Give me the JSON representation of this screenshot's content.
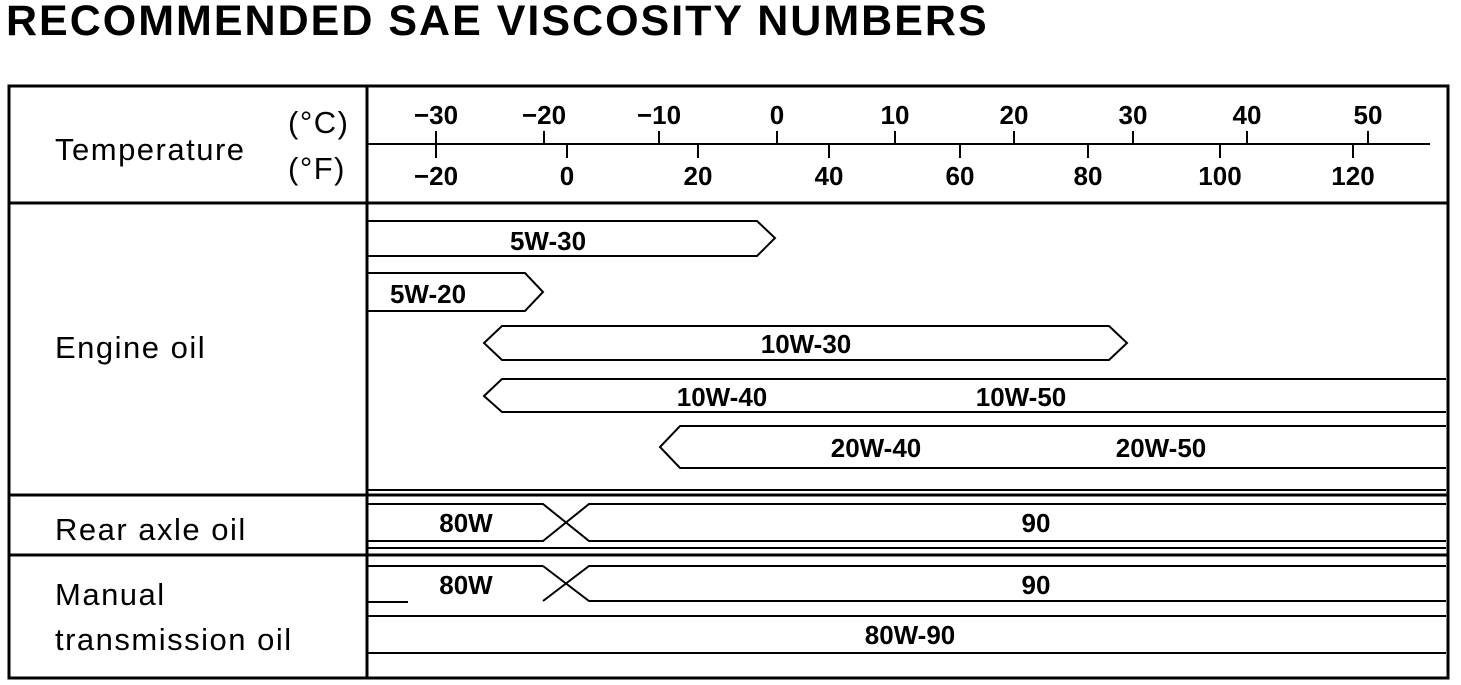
{
  "title": "RECOMMENDED SAE VISCOSITY NUMBERS",
  "labels": {
    "temperature": "Temperature",
    "celsius": "(°C)",
    "fahrenheit": "(°F)",
    "engine_oil": "Engine  oil",
    "rear_axle_oil": "Rear  axle  oil",
    "manual_line1": "Manual",
    "manual_line2": "transmission  oil"
  },
  "chart_data": {
    "type": "range-bar",
    "celsius_ticks": [
      "−30",
      "−20",
      "−10",
      "0",
      "10",
      "20",
      "30",
      "40",
      "50"
    ],
    "fahrenheit_ticks": [
      "−20",
      "0",
      "20",
      "40",
      "60",
      "80",
      "100",
      "120"
    ],
    "groups": [
      {
        "name": "Engine  oil",
        "bands": [
          {
            "label": "5W-30",
            "from_c": null,
            "to_c": 0
          },
          {
            "label": "5W-20",
            "from_c": null,
            "to_c": -20
          },
          {
            "label": "10W-30",
            "from_c": -20,
            "to_c": 30
          },
          {
            "label": "10W-40",
            "second_label": "10W-50",
            "from_c": -20,
            "to_c": null
          },
          {
            "label": "20W-40",
            "second_label": "20W-50",
            "from_c": -10,
            "to_c": null
          }
        ]
      },
      {
        "name": "Rear  axle  oil",
        "bands": [
          {
            "label": "80W",
            "from_c": null,
            "to_c": -18
          },
          {
            "label": "90",
            "from_c": -18,
            "to_c": null
          }
        ]
      },
      {
        "name": "Manual transmission oil",
        "bands": [
          {
            "label": "80W",
            "from_c": null,
            "to_c": -18
          },
          {
            "label": "90",
            "from_c": -18,
            "to_c": null
          },
          {
            "label": "80W-90",
            "from_c": null,
            "to_c": null
          }
        ]
      }
    ]
  }
}
